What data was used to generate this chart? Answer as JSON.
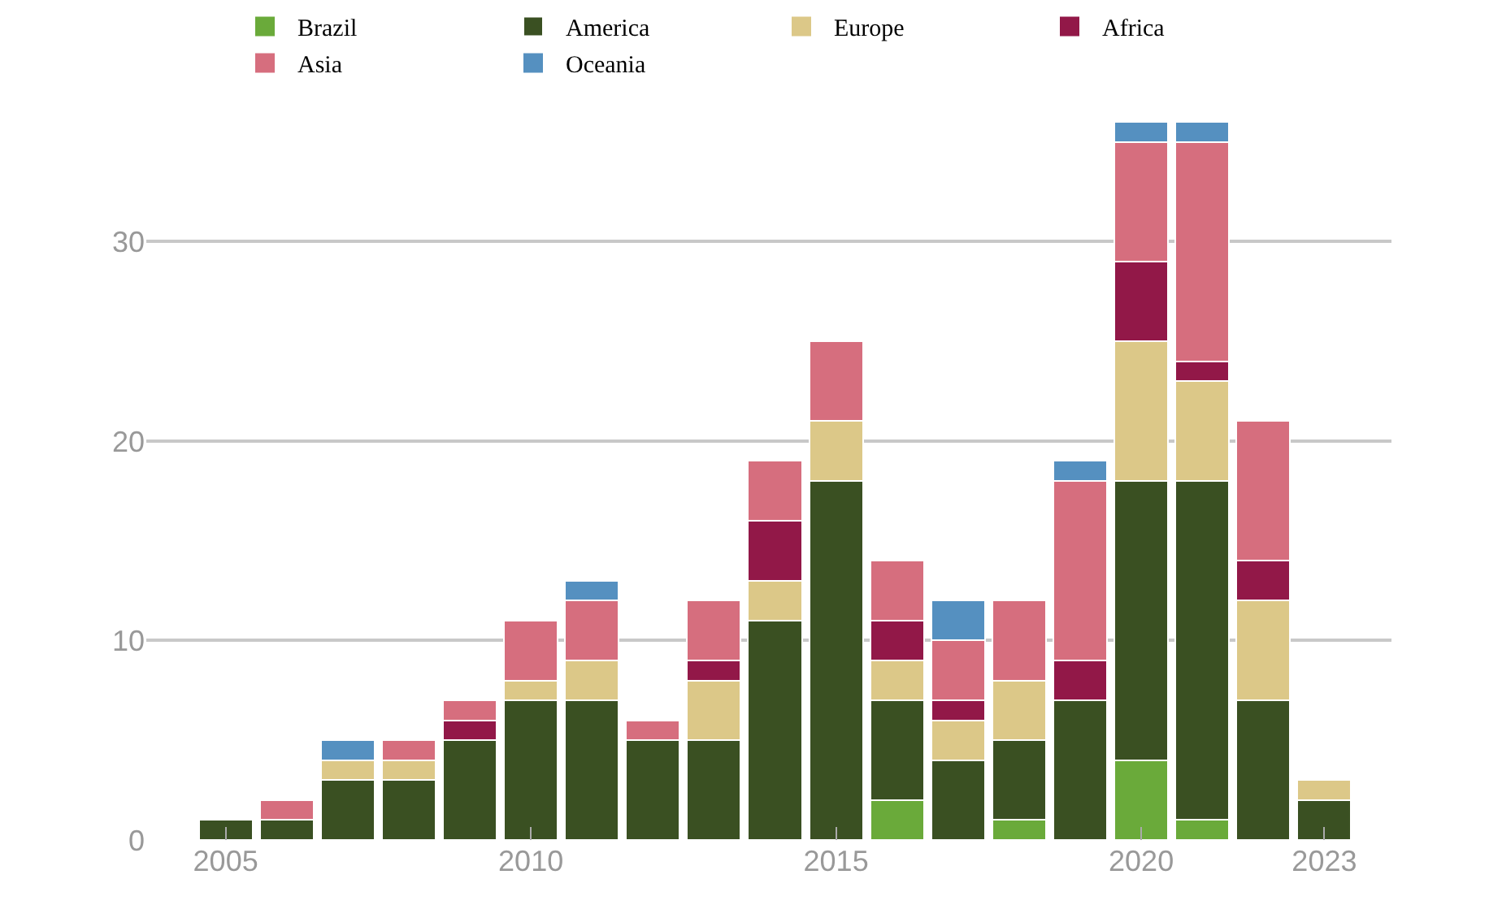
{
  "chart_data": {
    "type": "bar",
    "stacked": true,
    "x": [
      2005,
      2006,
      2007,
      2008,
      2009,
      2010,
      2011,
      2012,
      2013,
      2014,
      2015,
      2016,
      2017,
      2018,
      2019,
      2020,
      2021,
      2022,
      2023
    ],
    "series": [
      {
        "name": "Brazil",
        "color": "#6aaa3a",
        "values": [
          0,
          0,
          0,
          0,
          0,
          0,
          0,
          0,
          0,
          0,
          0,
          2,
          0,
          1,
          0,
          4,
          1,
          0,
          0
        ]
      },
      {
        "name": "America",
        "color": "#3a5022",
        "values": [
          1,
          1,
          3,
          3,
          5,
          7,
          7,
          5,
          5,
          11,
          18,
          5,
          4,
          4,
          7,
          14,
          17,
          7,
          2
        ]
      },
      {
        "name": "Europe",
        "color": "#dcc888",
        "values": [
          0,
          0,
          1,
          1,
          0,
          1,
          2,
          0,
          3,
          2,
          3,
          2,
          2,
          3,
          0,
          7,
          5,
          5,
          1
        ]
      },
      {
        "name": "Africa",
        "color": "#921848",
        "values": [
          0,
          0,
          0,
          0,
          1,
          0,
          0,
          0,
          1,
          3,
          0,
          2,
          1,
          0,
          2,
          4,
          1,
          2,
          0
        ]
      },
      {
        "name": "Asia",
        "color": "#d66e7e",
        "values": [
          0,
          1,
          0,
          1,
          1,
          3,
          3,
          1,
          3,
          3,
          4,
          3,
          3,
          4,
          9,
          6,
          11,
          7,
          0
        ]
      },
      {
        "name": "Oceania",
        "color": "#5590c0",
        "values": [
          0,
          0,
          1,
          0,
          0,
          0,
          1,
          0,
          0,
          0,
          0,
          0,
          2,
          0,
          1,
          1,
          1,
          0,
          0
        ]
      }
    ],
    "xlim": [
      2003.7,
      2024.1
    ],
    "xticks": [
      2005,
      2010,
      2015,
      2020,
      2023
    ],
    "ylim": [
      0,
      36
    ],
    "yticks": [
      0,
      10,
      20,
      30
    ],
    "grid": "y",
    "legend": "top"
  }
}
